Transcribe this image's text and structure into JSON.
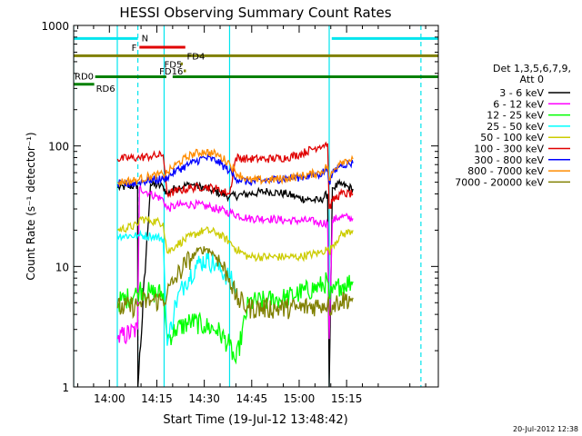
{
  "chart_data": {
    "type": "line",
    "title": "HESSI Observing Summary Count Rates",
    "xlabel": "Start Time (19-Jul-12 13:48:42)",
    "ylabel": "Count Rate (s⁻¹ detector⁻¹)",
    "x_tick_labels": [
      "14:00",
      "14:15",
      "14:30",
      "14:45",
      "15:00",
      "15:15"
    ],
    "x_ticks_minutes": [
      840,
      855,
      870,
      885,
      900,
      915
    ],
    "xlim_minutes": [
      828.7,
      944.0
    ],
    "y_scale": "log",
    "ylim": [
      1,
      1000
    ],
    "y_tick_labels": [
      "1",
      "10",
      "100",
      "1000"
    ],
    "y_tick_values": [
      1,
      10,
      100,
      1000
    ],
    "legend_header": [
      "Det 1,3,5,6,7,9,",
      "Att 0"
    ],
    "legend_position": "right",
    "timestamp": "20-Jul-2012 12:38",
    "flags": [
      {
        "label": "N",
        "color": "#00e5ee",
        "segments": [
          [
            828.7,
            849.0
          ],
          [
            910.3,
            944.0
          ]
        ],
        "y_value": 780
      },
      {
        "label": "F",
        "color": "#e00000",
        "segments": [
          [
            849.5,
            864.0
          ]
        ],
        "y_value": 660
      },
      {
        "label": "FD4",
        "color": "#808000",
        "segments": [
          [
            828.7,
            944.0
          ]
        ],
        "y_value": 560
      },
      {
        "label": "FD5",
        "color": "#808000",
        "segments": [
          [
            862.5,
            863.2
          ]
        ],
        "y_value": 480
      },
      {
        "label": "FD16",
        "color": "#808000",
        "segments": [
          [
            863.5,
            864.2
          ]
        ],
        "y_value": 420
      },
      {
        "label": "RD0",
        "color": "#008000",
        "segments": [
          [
            835.5,
            858.0
          ],
          [
            860.0,
            944.0
          ]
        ],
        "y_value": 375
      },
      {
        "label": "RD6",
        "color": "#008000",
        "segments": [
          [
            828.7,
            835.2
          ]
        ],
        "y_value": 325
      }
    ],
    "cyan_markers_solid": [
      828.7,
      842.5,
      857.3,
      878.0,
      909.5
    ],
    "cyan_markers_dashed": [
      849.0,
      938.5
    ],
    "series": [
      {
        "name": "3 - 6 keV",
        "color": "#000000",
        "x": [
          842.6,
          848.9,
          849.0,
          853.0,
          857.0,
          858.3,
          861.0,
          866.0,
          872.0,
          878.0,
          884.0,
          890.0,
          896.0,
          900.0,
          903.0,
          906.5,
          909.0,
          909.5,
          910.5,
          913.0,
          917.0
        ],
        "y": [
          45,
          47,
          1.0,
          48,
          46,
          40,
          45,
          48,
          43,
          38,
          40,
          42,
          40,
          37,
          36,
          35,
          40,
          1.0,
          45,
          48,
          44
        ]
      },
      {
        "name": "6 - 12 keV",
        "color": "#ff00ff",
        "x": [
          842.6,
          848.9,
          849.5,
          853.0,
          857.0,
          858.3,
          861.0,
          866.0,
          872.0,
          878.0,
          884.0,
          890.0,
          896.0,
          900.0,
          903.0,
          906.5,
          909.0,
          909.5,
          910.5,
          913.0,
          917.0
        ],
        "y": [
          2.5,
          3.0,
          45,
          40,
          36,
          30,
          32,
          33,
          31,
          28,
          25,
          25,
          24,
          24,
          24,
          23,
          23,
          2.5,
          24,
          26,
          25
        ]
      },
      {
        "name": "12 - 25 keV",
        "color": "#00ff00",
        "x": [
          842.6,
          848.9,
          849.5,
          853.0,
          857.0,
          858.3,
          861.0,
          866.0,
          870.0,
          874.0,
          878.0,
          880.0,
          884.0,
          890.0,
          896.0,
          900.0,
          906.5,
          909.0,
          909.5,
          910.5,
          913.0,
          917.0
        ],
        "y": [
          5,
          6,
          6.5,
          6,
          6,
          2.5,
          3.0,
          3.5,
          3.2,
          3.0,
          2.2,
          1.6,
          5.0,
          5.2,
          5.5,
          6.0,
          6.8,
          7.5,
          5.5,
          6.0,
          7.0,
          7.5
        ]
      },
      {
        "name": "25 - 50 keV",
        "color": "#00ffff",
        "x": [
          842.6,
          848.9,
          849.5,
          853.0,
          857.0,
          858.3,
          861.0,
          864.0,
          868.0,
          871.0,
          874.0,
          878.0,
          880.0
        ],
        "y": [
          18,
          18,
          18,
          18,
          17,
          2.2,
          5.0,
          7.5,
          10.5,
          11.5,
          10.0,
          8.0,
          6.5
        ]
      },
      {
        "name": "50 - 100 keV",
        "color": "#cccc00",
        "x": [
          842.6,
          848.9,
          849.5,
          853.0,
          857.0,
          858.3,
          861.0,
          866.0,
          870.0,
          874.0,
          878.0,
          880.0,
          884.0,
          890.0,
          896.0,
          900.0,
          906.5,
          909.0,
          909.5,
          910.5,
          913.0,
          917.0
        ],
        "y": [
          20,
          22,
          25,
          24,
          23,
          13,
          15,
          18,
          20,
          19,
          16,
          14,
          12,
          12,
          12,
          12,
          13,
          14,
          13,
          15,
          18,
          20
        ]
      },
      {
        "name": "100 - 300 keV",
        "color": "#e00000",
        "x": [
          842.6,
          848.9,
          849.5,
          853.0,
          857.0,
          858.3,
          861.0,
          866.0,
          870.0,
          874.0,
          878.0,
          880.0,
          884.0,
          890.0,
          896.0,
          900.0,
          906.5,
          909.0,
          909.5,
          910.5,
          913.0,
          917.0
        ],
        "y": [
          78,
          80,
          80,
          82,
          84,
          40,
          42,
          45,
          46,
          44,
          40,
          80,
          78,
          78,
          80,
          85,
          100,
          105,
          30,
          35,
          40,
          40
        ]
      },
      {
        "name": "300 - 800 keV",
        "color": "#0000ff",
        "x": [
          842.6,
          848.9,
          849.5,
          853.0,
          857.0,
          858.3,
          861.0,
          866.0,
          870.0,
          874.0,
          878.0,
          880.0,
          884.0,
          890.0,
          896.0,
          900.0,
          906.5,
          909.0,
          909.5,
          910.5,
          913.0,
          917.0
        ],
        "y": [
          48,
          49,
          50,
          52,
          53,
          55,
          62,
          72,
          80,
          75,
          62,
          54,
          50,
          52,
          54,
          55,
          58,
          65,
          50,
          58,
          70,
          72
        ]
      },
      {
        "name": "800 - 7000 keV",
        "color": "#ff8c00",
        "x": [
          842.6,
          848.9,
          849.5,
          853.0,
          857.0,
          858.3,
          861.0,
          866.0,
          870.0,
          874.0,
          878.0,
          880.0,
          884.0,
          890.0,
          896.0,
          900.0,
          906.5,
          909.0,
          909.5,
          910.5,
          913.0,
          917.0
        ],
        "y": [
          50,
          52,
          53,
          56,
          58,
          60,
          70,
          85,
          90,
          85,
          72,
          60,
          52,
          52,
          54,
          56,
          60,
          68,
          52,
          60,
          75,
          78
        ]
      },
      {
        "name": "7000 - 20000 keV",
        "color": "#808000",
        "x": [
          842.6,
          848.9,
          849.5,
          853.0,
          857.0,
          858.3,
          861.0,
          864.0,
          868.0,
          871.0,
          874.0,
          878.0,
          880.0,
          884.0,
          890.0,
          896.0,
          900.0,
          906.5,
          909.0,
          909.5,
          910.5,
          913.0,
          917.0
        ],
        "y": [
          4.5,
          4.7,
          5.0,
          5.2,
          5.2,
          6.0,
          8.0,
          10.5,
          13.5,
          14.0,
          12.0,
          8.0,
          5.5,
          4.5,
          4.5,
          4.5,
          4.5,
          4.8,
          5.0,
          4.5,
          4.8,
          5.2,
          5.5
        ]
      }
    ]
  }
}
